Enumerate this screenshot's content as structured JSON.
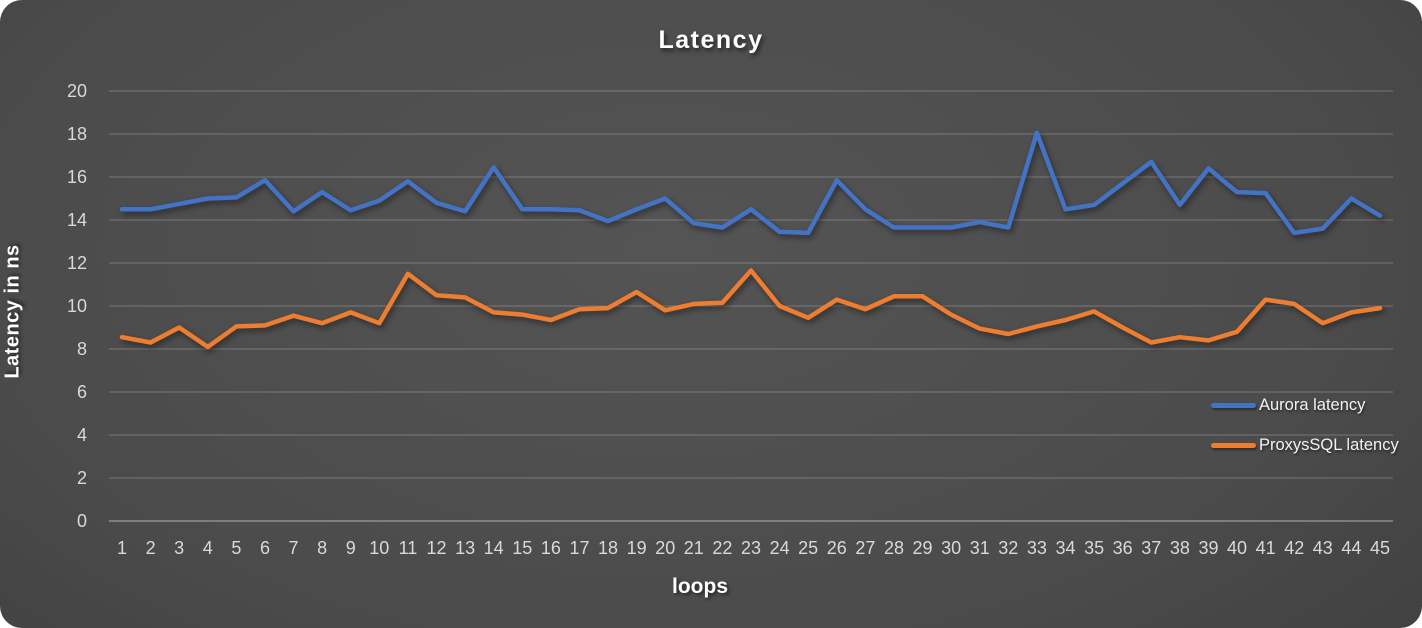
{
  "chart_data": {
    "type": "line",
    "title": "Latency",
    "xlabel": "loops",
    "ylabel": "Latency in ns",
    "x": [
      1,
      2,
      3,
      4,
      5,
      6,
      7,
      8,
      9,
      10,
      11,
      12,
      13,
      14,
      15,
      16,
      17,
      18,
      19,
      20,
      21,
      22,
      23,
      24,
      25,
      26,
      27,
      28,
      29,
      30,
      31,
      32,
      33,
      34,
      35,
      36,
      37,
      38,
      39,
      40,
      41,
      42,
      43,
      44,
      45
    ],
    "series": [
      {
        "name": "Aurora latency",
        "color": "#4472C4",
        "values": [
          14.5,
          14.5,
          14.75,
          15.0,
          15.05,
          15.85,
          14.4,
          15.3,
          14.45,
          14.9,
          15.8,
          14.8,
          14.4,
          16.45,
          14.5,
          14.5,
          14.45,
          13.95,
          14.5,
          15.0,
          13.85,
          13.65,
          14.5,
          13.45,
          13.4,
          15.85,
          14.5,
          13.65,
          13.65,
          13.65,
          13.9,
          13.65,
          18.05,
          14.5,
          14.7,
          15.7,
          16.7,
          14.7,
          16.4,
          15.3,
          15.25,
          13.4,
          13.6,
          15.0,
          14.2
        ]
      },
      {
        "name": "ProxysSQL latency",
        "color": "#ED7D31",
        "values": [
          8.55,
          8.3,
          9.0,
          8.1,
          9.05,
          9.1,
          9.55,
          9.2,
          9.7,
          9.2,
          11.5,
          10.5,
          10.4,
          9.7,
          9.6,
          9.35,
          9.85,
          9.9,
          10.65,
          9.8,
          10.1,
          10.15,
          11.65,
          10.0,
          9.45,
          10.3,
          9.85,
          10.45,
          10.45,
          9.6,
          8.95,
          8.7,
          9.05,
          9.35,
          9.75,
          9.0,
          8.3,
          8.55,
          8.4,
          8.8,
          10.3,
          10.1,
          9.2,
          9.7,
          9.9
        ]
      }
    ],
    "ylim": [
      0,
      20
    ],
    "ytick_step": 2,
    "grid": true,
    "legend_position": "right"
  },
  "colors": {
    "aurora_blue": "#4472C4",
    "proxysql_orange": "#ED7D31",
    "background_center": "#545454",
    "background_edge": "#272727",
    "gridline": "rgba(255,255,255,0.20)",
    "axis_text": "#d9d9d9",
    "title_text": "#ffffff"
  }
}
